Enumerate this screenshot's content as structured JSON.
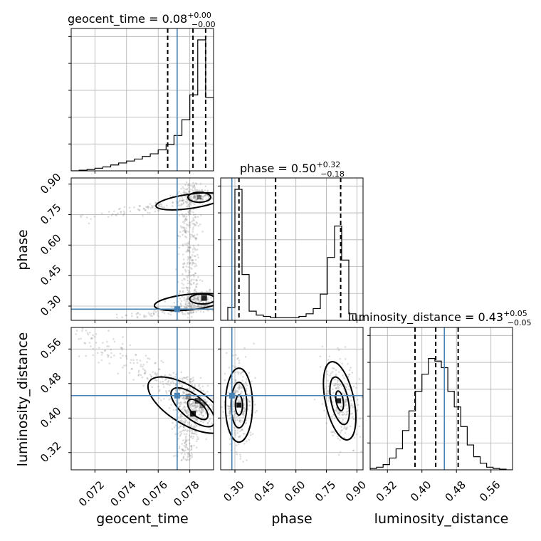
{
  "chart_data": {
    "type": "corner",
    "parameters": [
      "geocent_time",
      "phase",
      "luminosity_distance"
    ],
    "axis_labels": {
      "geocent_time": "geocent_time",
      "phase": "phase",
      "luminosity_distance": "luminosity_distance"
    },
    "titles": [
      {
        "parameter": "geocent_time",
        "prefix": "geocent_time = ",
        "median": "0.08",
        "plus": "+0.00",
        "minus": "−0.00"
      },
      {
        "parameter": "phase",
        "prefix": "phase = ",
        "median": "0.50",
        "plus": "+0.32",
        "minus": "−0.18"
      },
      {
        "parameter": "luminosity_distance",
        "prefix": "luminosity_distance = ",
        "median": "0.43",
        "plus": "+0.05",
        "minus": "−0.05"
      }
    ],
    "ranges": {
      "geocent_time": [
        0.0705,
        0.0795
      ],
      "phase": [
        0.23,
        0.93
      ],
      "luminosity_distance": [
        0.28,
        0.61
      ]
    },
    "ticks": {
      "geocent_time": [
        0.072,
        0.074,
        0.076,
        0.078
      ],
      "geocent_time_labels": [
        "0.072",
        "0.074",
        "0.076",
        "0.078"
      ],
      "phase": [
        0.3,
        0.45,
        0.6,
        0.75,
        0.9
      ],
      "phase_labels": [
        "0.30",
        "0.45",
        "0.60",
        "0.75",
        "0.90"
      ],
      "luminosity_distance": [
        0.32,
        0.4,
        0.48,
        0.56
      ],
      "luminosity_distance_labels": [
        "0.32",
        "0.40",
        "0.48",
        "0.56"
      ]
    },
    "truths": {
      "geocent_time": 0.0772,
      "phase": 0.285,
      "luminosity_distance": 0.452
    },
    "quantiles": {
      "geocent_time": [
        0.0766,
        0.0782,
        0.079
      ],
      "phase": [
        0.32,
        0.5,
        0.82
      ],
      "luminosity_distance": [
        0.384,
        0.432,
        0.484
      ]
    },
    "histograms": {
      "geocent_time": {
        "edges": [
          0.0705,
          0.071,
          0.0715,
          0.072,
          0.0725,
          0.073,
          0.0735,
          0.074,
          0.0745,
          0.075,
          0.0755,
          0.076,
          0.0765,
          0.077,
          0.0775,
          0.078,
          0.0785,
          0.079,
          0.0795
        ],
        "counts": [
          0,
          0.005,
          0.01,
          0.02,
          0.03,
          0.045,
          0.06,
          0.075,
          0.09,
          0.11,
          0.13,
          0.16,
          0.2,
          0.27,
          0.39,
          0.58,
          1.0,
          0.56
        ]
      },
      "phase": {
        "edges": [
          0.23,
          0.265,
          0.3,
          0.335,
          0.37,
          0.405,
          0.44,
          0.475,
          0.51,
          0.545,
          0.58,
          0.615,
          0.65,
          0.685,
          0.72,
          0.755,
          0.79,
          0.825,
          0.86,
          0.895,
          0.93
        ],
        "counts": [
          0,
          0.1,
          1.0,
          0.35,
          0.07,
          0.04,
          0.03,
          0.02,
          0.02,
          0.02,
          0.02,
          0.03,
          0.05,
          0.09,
          0.2,
          0.48,
          0.72,
          0.46,
          0.05,
          0
        ]
      },
      "luminosity_distance": {
        "edges": [
          0.28,
          0.295,
          0.31,
          0.325,
          0.34,
          0.355,
          0.37,
          0.385,
          0.4,
          0.415,
          0.43,
          0.445,
          0.46,
          0.475,
          0.49,
          0.505,
          0.52,
          0.535,
          0.55,
          0.565,
          0.58,
          0.595,
          0.61
        ],
        "counts": [
          0.01,
          0.02,
          0.04,
          0.09,
          0.16,
          0.3,
          0.45,
          0.6,
          0.73,
          0.85,
          0.83,
          0.78,
          0.6,
          0.48,
          0.33,
          0.19,
          0.1,
          0.05,
          0.02,
          0.01,
          0.005,
          0
        ]
      }
    }
  }
}
